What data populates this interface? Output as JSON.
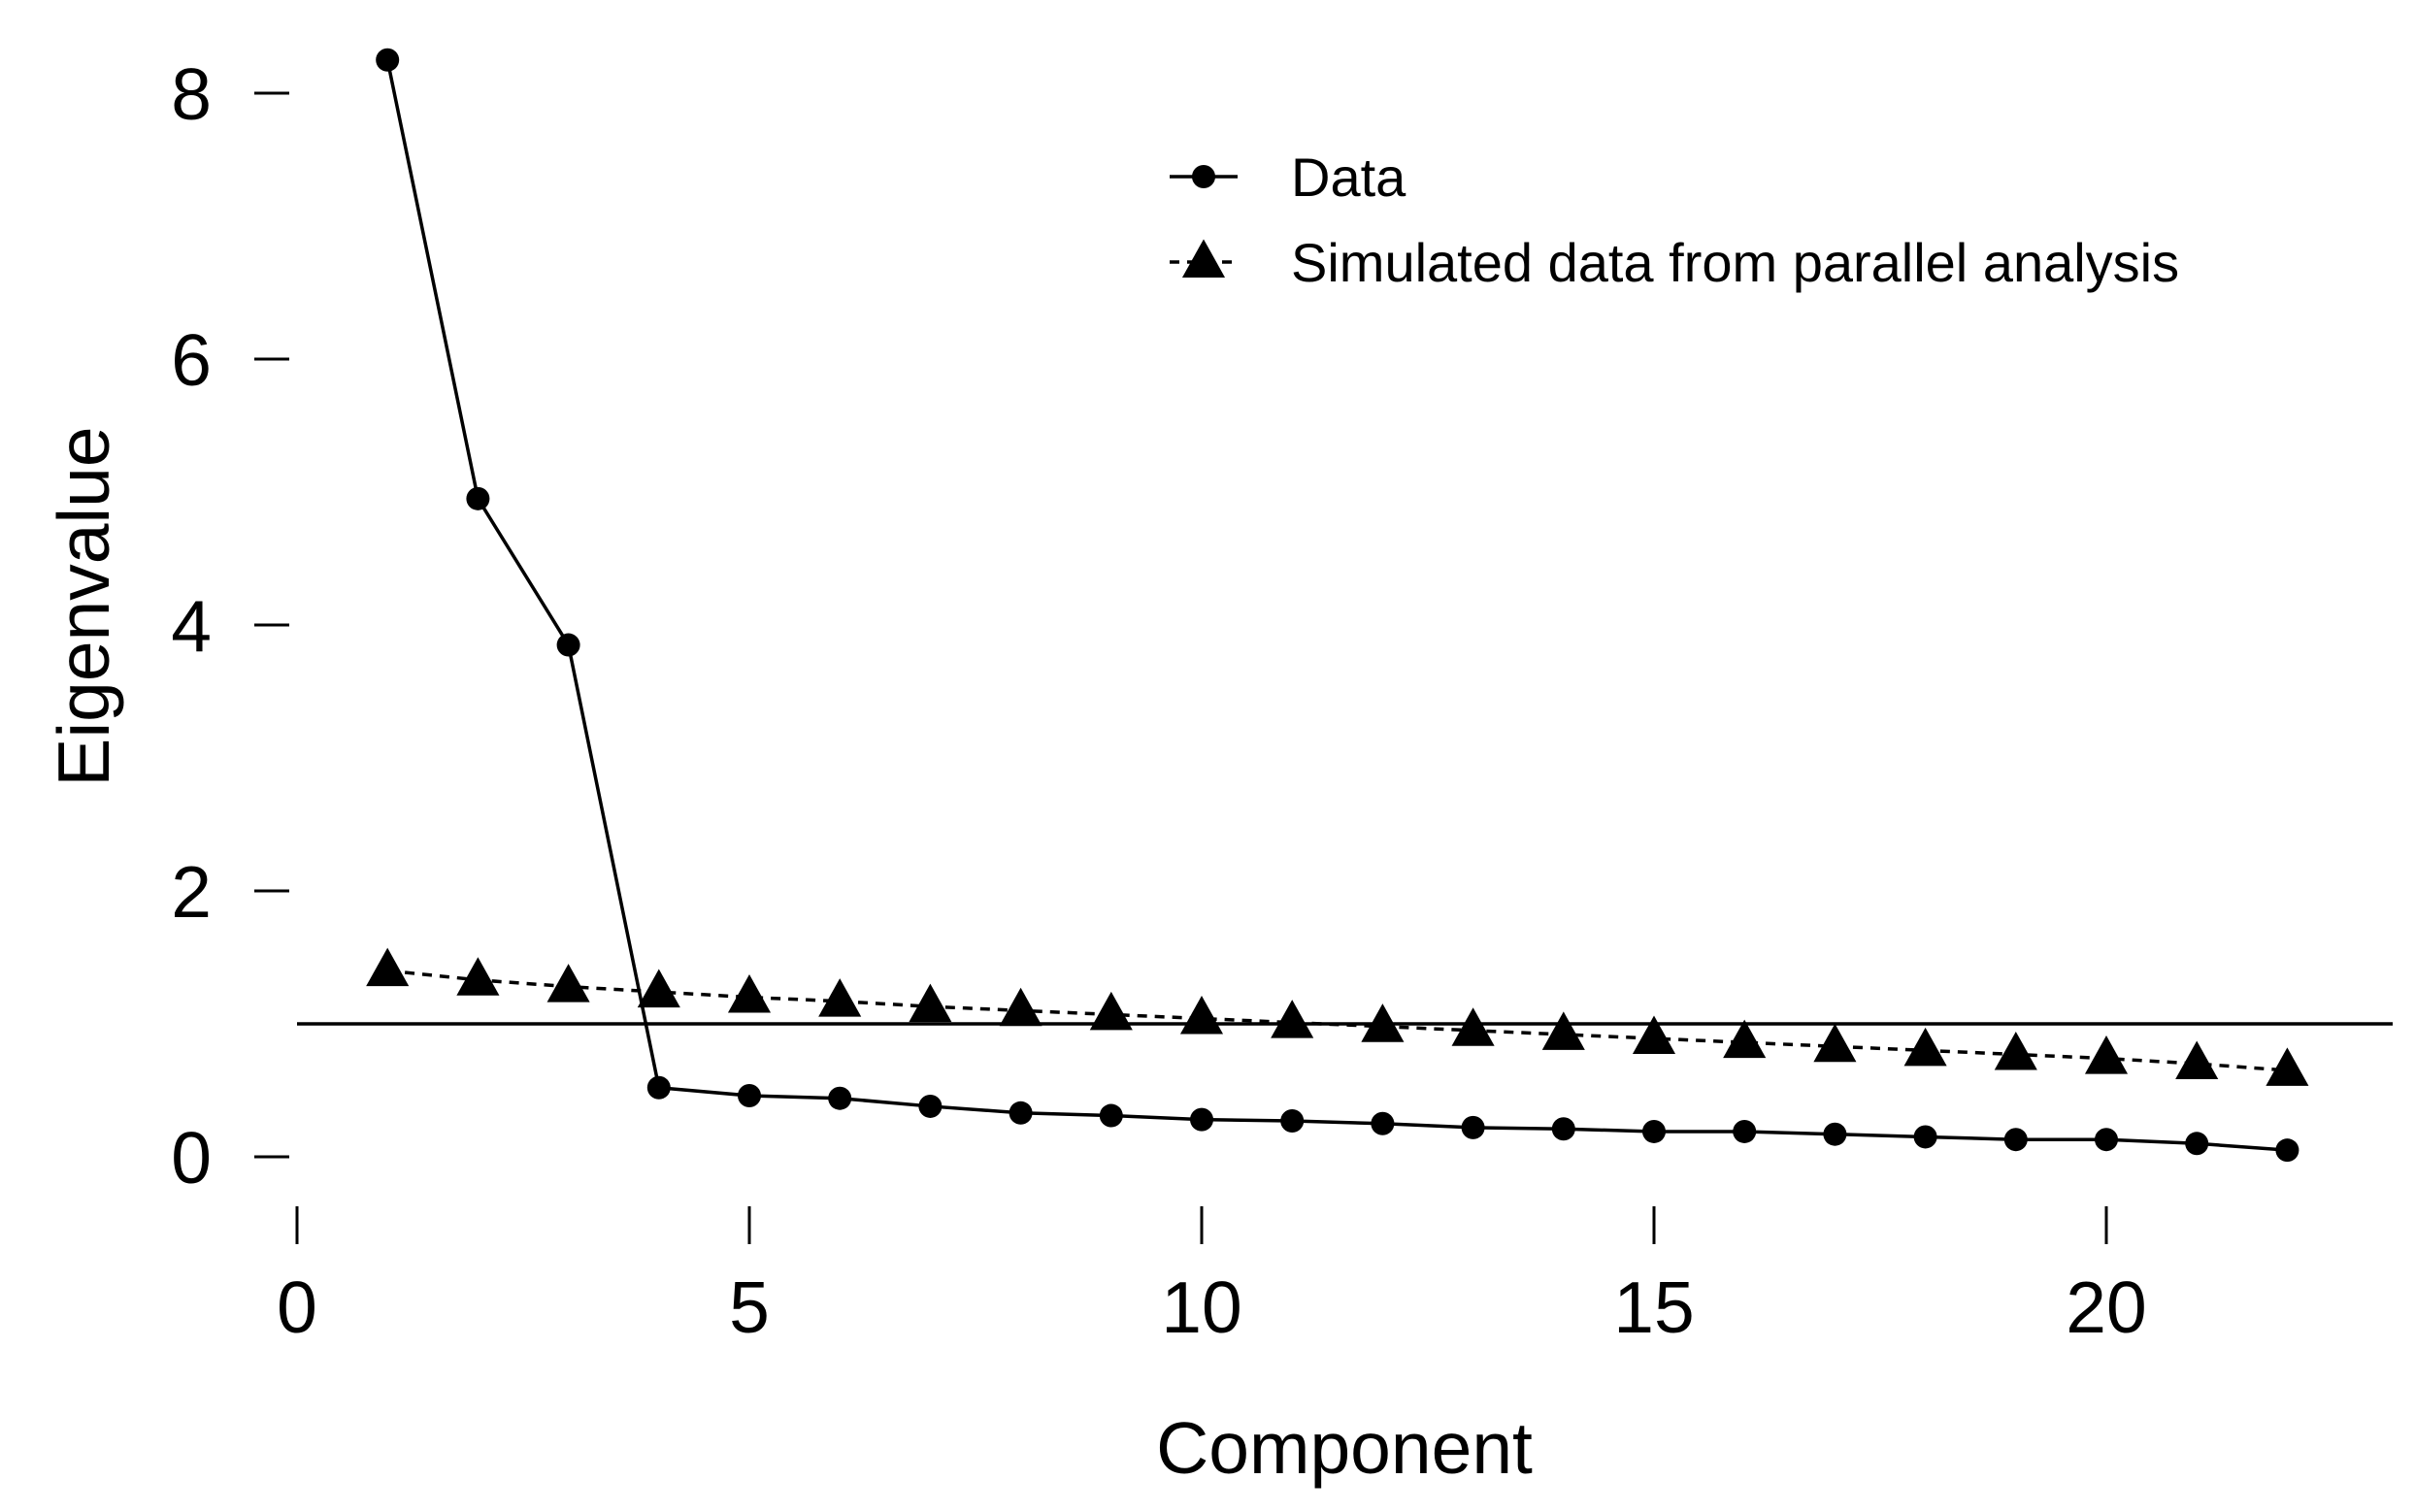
{
  "chart_data": {
    "type": "line",
    "title": "",
    "xlabel": "Component",
    "ylabel": "Eigenvalue",
    "xlim": [
      0,
      23.3
    ],
    "ylim": [
      -0.6,
      8.7
    ],
    "x_ticks": [
      0,
      5,
      10,
      15,
      20
    ],
    "y_ticks": [
      0,
      2,
      4,
      6,
      8
    ],
    "grid": false,
    "legend_position": "top-right",
    "reference_line": {
      "y": 1
    },
    "x": [
      1,
      2,
      3,
      4,
      5,
      6,
      7,
      8,
      9,
      10,
      11,
      12,
      13,
      14,
      15,
      16,
      17,
      18,
      19,
      20,
      21,
      22
    ],
    "series": [
      {
        "name": "Data",
        "marker": "circle",
        "line": "solid",
        "values": [
          8.25,
          4.95,
          3.85,
          0.52,
          0.46,
          0.44,
          0.38,
          0.33,
          0.31,
          0.28,
          0.27,
          0.25,
          0.22,
          0.21,
          0.19,
          0.19,
          0.17,
          0.15,
          0.13,
          0.13,
          0.1,
          0.05
        ]
      },
      {
        "name": "Simulated data from parallel analysis",
        "marker": "triangle",
        "line": "dashed",
        "values": [
          1.4,
          1.33,
          1.28,
          1.24,
          1.2,
          1.17,
          1.13,
          1.1,
          1.07,
          1.04,
          1.01,
          0.98,
          0.95,
          0.92,
          0.89,
          0.86,
          0.83,
          0.8,
          0.77,
          0.74,
          0.7,
          0.65
        ]
      }
    ]
  }
}
